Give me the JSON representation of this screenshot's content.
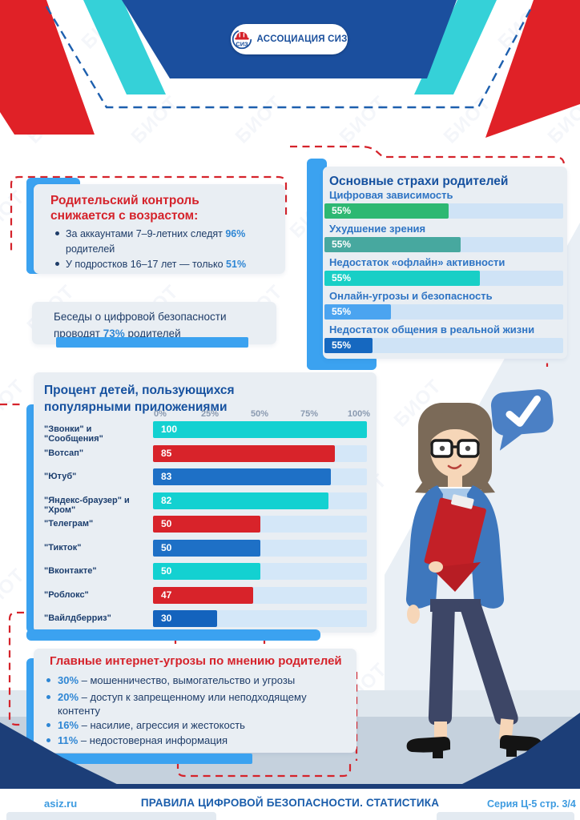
{
  "header": {
    "logo_label": "АССОЦИАЦИЯ СИЗ",
    "logo_mark": "СИЗ"
  },
  "watermark_text": "БИОТ",
  "parental_control": {
    "title": "Родительский контроль снижается с возрастом:",
    "bullets": [
      {
        "pre": "За аккаунтами 7–9-летних следят ",
        "value": "96%",
        "post": " родителей"
      },
      {
        "pre": "У подростков 16–17 лет — только ",
        "value": "51%",
        "post": ""
      }
    ]
  },
  "talks": {
    "pre": "Беседы о цифровой безопасности проводят ",
    "value": "73%",
    "post": " родителей"
  },
  "threats": {
    "title": "Главные интернет-угрозы по мнению родителей",
    "items": [
      {
        "value": "30%",
        "text": "– мошенничество, вымогательство и угрозы"
      },
      {
        "value": "20%",
        "text": "– доступ к запрещенному или неподходящему контенту"
      },
      {
        "value": "16%",
        "text": "– насилие, агрессия и жестокость"
      },
      {
        "value": "11%",
        "text": "– недостоверная информация"
      }
    ]
  },
  "chart_data": [
    {
      "id": "fears",
      "type": "bar",
      "orientation": "horizontal",
      "title": "Основные страхи родителей",
      "categories": [
        "Цифровая зависимость",
        "Ухудшение зрения",
        "Недостаток «офлайн» активности",
        "Онлайн-угрозы и безопасность",
        "Недостаток общения в реальной жизни"
      ],
      "values": [
        55,
        55,
        55,
        55,
        55
      ],
      "value_labels": [
        "55%",
        "55%",
        "55%",
        "55%",
        "55%"
      ],
      "bar_visual_pct": [
        52,
        57,
        65,
        28,
        20
      ],
      "bar_colors": [
        "#2db872",
        "#47a89f",
        "#18cfc6",
        "#4ba4f0",
        "#1668c0"
      ],
      "xlim": [
        0,
        100
      ],
      "grid": false,
      "legend": false
    },
    {
      "id": "apps",
      "type": "bar",
      "orientation": "horizontal",
      "title": "Процент детей, пользующихся популярными приложениями",
      "categories": [
        "\"Звонки\" и \"Сообщения\"",
        "\"Вотсап\"",
        "\"Ютуб\"",
        "\"Яндекс-браузер\" и \"Хром\"",
        "\"Телеграм\"",
        "\"Тикток\"",
        "\"Вконтакте\"",
        "\"Роблокс\"",
        "\"Вайлдберриз\""
      ],
      "values": [
        100,
        85,
        83,
        82,
        50,
        50,
        50,
        47,
        30
      ],
      "bar_colors": [
        "#13d1d1",
        "#d8232a",
        "#1e70c6",
        "#13d1d1",
        "#d8232a",
        "#1e70c6",
        "#13d1d1",
        "#d8232a",
        "#1463bd"
      ],
      "xticks": [
        "0%",
        "25%",
        "50%",
        "75%",
        "100%"
      ],
      "xlim": [
        0,
        100
      ],
      "grid": false,
      "legend": false
    }
  ],
  "footer": {
    "site": "asiz.ru",
    "title": "ПРАВИЛА ЦИФРОВОЙ БЕЗОПАСНОСТИ. СТАТИСТИКА",
    "series": "Серия Ц-5 стр. 3/4"
  },
  "colors": {
    "accent_blue": "#3ba2f0",
    "primary_blue": "#16519f",
    "red": "#d5232b",
    "navy_footer": "#1c3e78",
    "panel_bg": "#e9eef3",
    "bar_track": "#cfe3f6",
    "value_blue": "#2e86d4",
    "header_navy": "#1b4f9e",
    "header_cyan": "#35d1d8"
  }
}
